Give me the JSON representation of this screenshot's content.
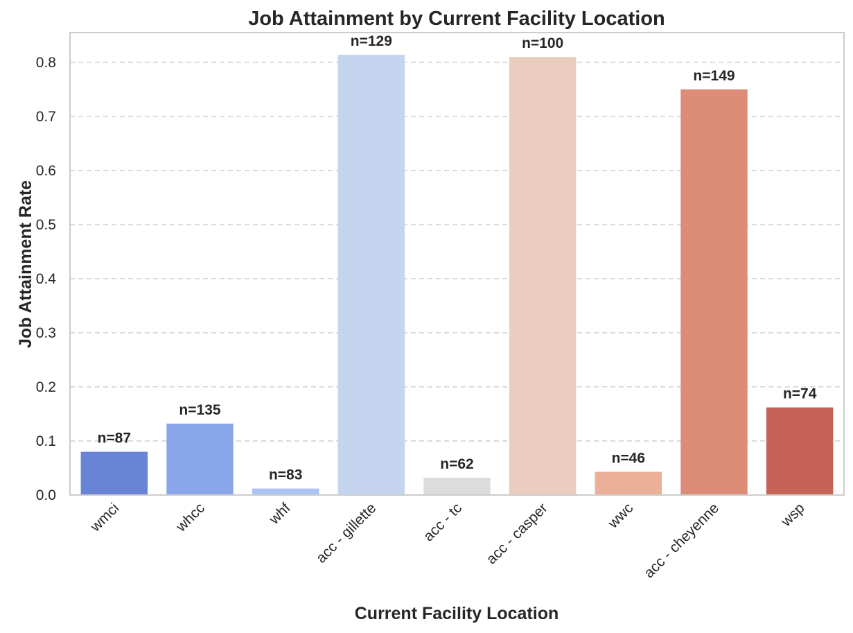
{
  "chart_data": {
    "type": "bar",
    "title": "Job Attainment by Current Facility Location",
    "xlabel": "Current Facility Location",
    "ylabel": "Job Attainment Rate",
    "categories": [
      "wmci",
      "whcc",
      "whf",
      "acc - gillette",
      "acc - tc",
      "acc - casper",
      "wwc",
      "acc - cheyenne",
      "wsp"
    ],
    "values": [
      0.08,
      0.132,
      0.012,
      0.814,
      0.032,
      0.81,
      0.043,
      0.75,
      0.162
    ],
    "annotations": [
      "n=87",
      "n=135",
      "n=83",
      "n=129",
      "n=62",
      "n=100",
      "n=46",
      "n=149",
      "n=74"
    ],
    "colors": [
      "#6a84d5",
      "#8aa6ea",
      "#abc3f7",
      "#c6d5ef",
      "#dcdcdc",
      "#ebcdbf",
      "#ebb098",
      "#dd8d77",
      "#c46356"
    ],
    "ylim": [
      0,
      0.855
    ],
    "yticks": [
      "0.0",
      "0.1",
      "0.2",
      "0.3",
      "0.4",
      "0.5",
      "0.6",
      "0.7",
      "0.8"
    ],
    "grid": "y-dashed",
    "legend": "none"
  }
}
